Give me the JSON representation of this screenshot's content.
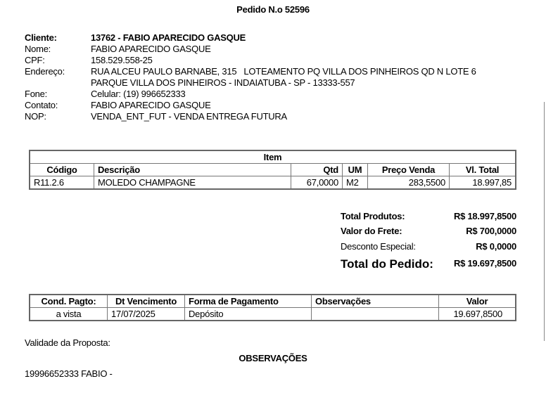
{
  "title": "Pedido N.o 52596",
  "client": {
    "fields": [
      {
        "label": "Cliente:",
        "value": "13762 - FABIO APARECIDO GASQUE"
      },
      {
        "label": "Nome:",
        "value": "FABIO APARECIDO GASQUE"
      },
      {
        "label": "CPF:",
        "value": "158.529.558-25"
      },
      {
        "label": "Endereço:",
        "value": "RUA ALCEU PAULO BARNABE, 315   LOTEAMENTO PQ VILLA DOS PINHEIROS QD N LOTE 6"
      },
      {
        "label": "",
        "value": "PARQUE VILLA DOS PINHEIROS - INDAIATUBA - SP - 13333-557"
      },
      {
        "label": "Fone:",
        "value": "Celular: (19) 996652333"
      },
      {
        "label": "Contato:",
        "value": "FABIO APARECIDO GASQUE"
      },
      {
        "label": "NOP:",
        "value": "VENDA_ENT_FUT - VENDA ENTREGA FUTURA"
      }
    ]
  },
  "items_table": {
    "caption": "Item",
    "headers": [
      "Código",
      "Descrição",
      "Qtd",
      "UM",
      "Preço Venda",
      "Vl. Total"
    ],
    "rows": [
      [
        "R11.2.6",
        "MOLEDO CHAMPAGNE",
        "67,0000",
        "M2",
        "283,5500",
        "18.997,85"
      ]
    ]
  },
  "totals": {
    "total_produtos_label": "Total Produtos:",
    "total_produtos": "R$ 18.997,8500",
    "frete_label": "Valor do Frete:",
    "frete": "R$ 700,0000",
    "desconto_label": "Desconto Especial:",
    "desconto": "R$ 0,0000",
    "total_pedido_label": "Total do Pedido:",
    "total_pedido": "R$ 19.697,8500"
  },
  "payment_table": {
    "headers": [
      "Cond. Pagto:",
      "Dt Vencimento",
      "Forma de Pagamento",
      "Observações",
      "Valor"
    ],
    "rows": [
      [
        "a vista",
        "17/07/2025",
        "Depósito",
        "",
        "19.697,8500"
      ]
    ]
  },
  "validade_label": "Validade da Proposta:",
  "observacoes_title": "OBSERVAÇÕES",
  "observacoes_text": "19996652333 FABIO -"
}
